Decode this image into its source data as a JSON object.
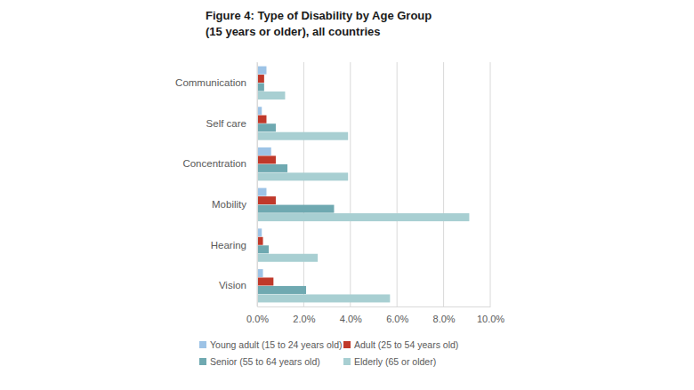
{
  "chart_data": {
    "type": "bar",
    "orientation": "horizontal",
    "title": "Figure 4: Type of Disability by Age Group",
    "subtitle": "(15 years or older), all countries",
    "categories": [
      "Communication",
      "Self care",
      "Concentration",
      "Mobility",
      "Hearing",
      "Vision"
    ],
    "series": [
      {
        "name": "Young adult (15 to 24 years old)",
        "color": "#9dc3e6",
        "values": [
          0.4,
          0.2,
          0.6,
          0.4,
          0.2,
          0.25
        ]
      },
      {
        "name": "Adult (25 to 54 years old)",
        "color": "#c0392b",
        "values": [
          0.3,
          0.4,
          0.8,
          0.8,
          0.25,
          0.7
        ]
      },
      {
        "name": "Senior (55 to 64 years old)",
        "color": "#6fa9b1",
        "values": [
          0.3,
          0.8,
          1.3,
          3.3,
          0.5,
          2.1
        ]
      },
      {
        "name": "Elderly (65 or older)",
        "color": "#a8cfd2",
        "values": [
          1.2,
          3.9,
          3.9,
          9.1,
          2.6,
          5.7
        ]
      }
    ],
    "xlim": [
      0,
      10
    ],
    "xticks": [
      {
        "value": 0,
        "label": "0.0%"
      },
      {
        "value": 2,
        "label": "2.0%"
      },
      {
        "value": 4,
        "label": "4.0%"
      },
      {
        "value": 6,
        "label": "6.0%"
      },
      {
        "value": 8,
        "label": "8.0%"
      },
      {
        "value": 10,
        "label": "10.0%"
      }
    ],
    "grid": true,
    "legend": "bottom"
  }
}
